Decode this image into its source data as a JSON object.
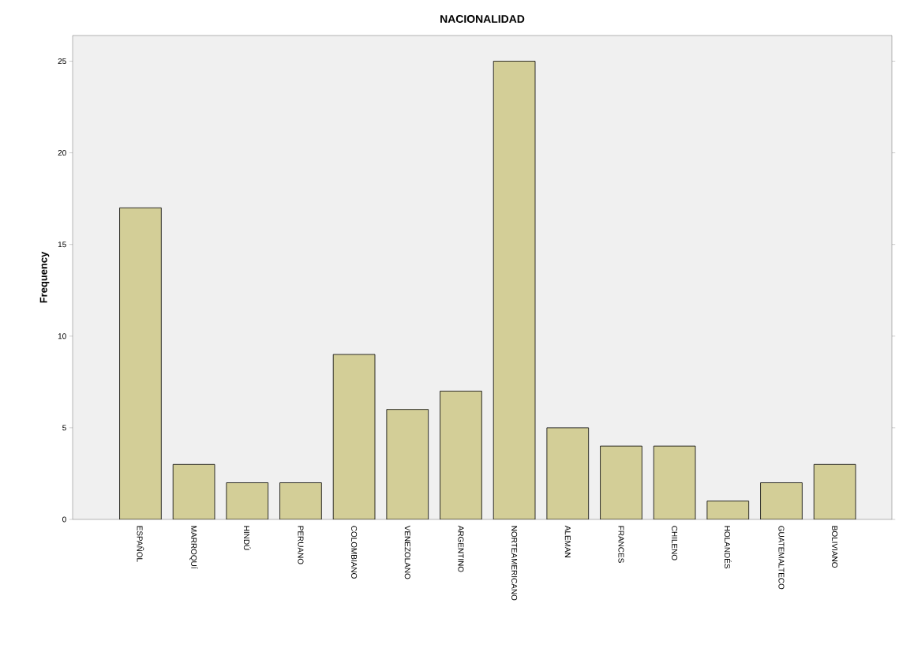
{
  "chart_data": {
    "type": "bar",
    "title": "NACIONALIDAD",
    "ylabel": "Frequency",
    "categories": [
      "ESPAÑOL",
      "MARROQUÍ",
      "HINDÚ",
      "PERUANO",
      "COLOMBIANO",
      "VENEZOLANO",
      "ARGENTINO",
      "NORTEAMERICANO",
      "ALEMAN",
      "FRANCES",
      "CHILENO",
      "HOLANDÉS",
      "GUATEMALTECO",
      "BOLIVIANO"
    ],
    "values": [
      17,
      3,
      2,
      2,
      9,
      6,
      7,
      25,
      5,
      4,
      4,
      1,
      2,
      3
    ],
    "color": "#d3ce97",
    "ylim": [
      0,
      26.4
    ],
    "yticks": [
      0,
      5,
      10,
      15,
      20,
      25
    ]
  }
}
